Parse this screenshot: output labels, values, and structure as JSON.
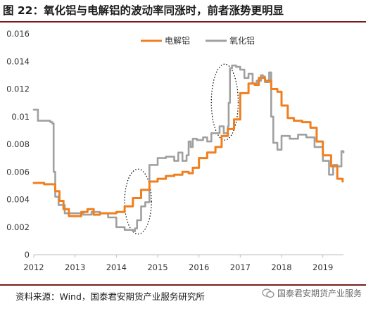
{
  "figure": {
    "title": "图 22：氧化铝与电解铝的波动率同涨时，前者涨势更明显",
    "source": "资料来源：Wind，国泰君安期货产业服务研究所",
    "watermark": "国泰君安期货产业服务"
  },
  "chart_data": {
    "type": "line",
    "xlabel": "",
    "ylabel": "",
    "xlim": [
      2012,
      2019.5
    ],
    "ylim": [
      0,
      0.016
    ],
    "xticks": [
      "2012",
      "2013",
      "2014",
      "2015",
      "2016",
      "2017",
      "2018",
      "2019"
    ],
    "yticks": [
      "0",
      "0.002",
      "0.004",
      "0.006",
      "0.008",
      "0.01",
      "0.012",
      "0.014",
      "0.016"
    ],
    "legend_position": "top-center",
    "grid": false,
    "series": [
      {
        "name": "电解铝",
        "color": "#f07f1f",
        "x": [
          2012.0,
          2012.25,
          2012.45,
          2012.52,
          2012.62,
          2012.72,
          2012.85,
          2013.0,
          2013.15,
          2013.3,
          2013.45,
          2013.6,
          2013.8,
          2014.0,
          2014.2,
          2014.4,
          2014.6,
          2014.8,
          2015.0,
          2015.2,
          2015.4,
          2015.6,
          2015.75,
          2015.85,
          2016.0,
          2016.2,
          2016.4,
          2016.55,
          2016.7,
          2016.85,
          2017.0,
          2017.2,
          2017.35,
          2017.45,
          2017.6,
          2017.75,
          2017.9,
          2018.0,
          2018.15,
          2018.3,
          2018.5,
          2018.7,
          2018.85,
          2019.0,
          2019.2,
          2019.35,
          2019.48
        ],
        "y": [
          0.0052,
          0.0051,
          0.0051,
          0.0046,
          0.0039,
          0.0033,
          0.0028,
          0.0028,
          0.0031,
          0.0033,
          0.0029,
          0.003,
          0.003,
          0.0031,
          0.0035,
          0.0041,
          0.0047,
          0.0053,
          0.0055,
          0.0057,
          0.0058,
          0.006,
          0.0059,
          0.0063,
          0.007,
          0.0074,
          0.0078,
          0.0086,
          0.0091,
          0.0098,
          0.0117,
          0.0124,
          0.0123,
          0.0128,
          0.0126,
          0.012,
          0.0118,
          0.0108,
          0.0099,
          0.0097,
          0.0096,
          0.0092,
          0.0082,
          0.0072,
          0.0064,
          0.0055,
          0.0053
        ]
      },
      {
        "name": "氧化铝",
        "color": "#a0a0a0",
        "x": [
          2012.0,
          2012.05,
          2012.1,
          2012.4,
          2012.45,
          2012.48,
          2012.52,
          2012.6,
          2012.75,
          2012.85,
          2013.0,
          2013.2,
          2013.4,
          2013.6,
          2013.8,
          2014.0,
          2014.2,
          2014.4,
          2014.45,
          2014.5,
          2014.6,
          2014.7,
          2014.8,
          2015.0,
          2015.2,
          2015.4,
          2015.5,
          2015.6,
          2015.7,
          2015.75,
          2015.8,
          2015.85,
          2015.95,
          2016.1,
          2016.2,
          2016.3,
          2016.5,
          2016.6,
          2016.7,
          2016.72,
          2016.75,
          2016.8,
          2016.9,
          2017.0,
          2017.1,
          2017.2,
          2017.3,
          2017.4,
          2017.5,
          2017.55,
          2017.6,
          2017.7,
          2017.75,
          2017.8,
          2017.9,
          2018.0,
          2018.2,
          2018.4,
          2018.6,
          2018.8,
          2019.0,
          2019.15,
          2019.25,
          2019.35,
          2019.45,
          2019.5
        ],
        "y": [
          0.0105,
          0.0105,
          0.0097,
          0.0096,
          0.0095,
          0.006,
          0.0042,
          0.0036,
          0.003,
          0.003,
          0.003,
          0.0029,
          0.0031,
          0.003,
          0.0027,
          0.002,
          0.0018,
          0.0017,
          0.0019,
          0.0025,
          0.0035,
          0.0038,
          0.0065,
          0.007,
          0.0071,
          0.0068,
          0.0074,
          0.0068,
          0.0072,
          0.0082,
          0.0078,
          0.0084,
          0.0083,
          0.0085,
          0.0082,
          0.0088,
          0.0093,
          0.0088,
          0.0093,
          0.011,
          0.0135,
          0.0137,
          0.0136,
          0.0134,
          0.0128,
          0.0131,
          0.0124,
          0.0126,
          0.013,
          0.0129,
          0.0125,
          0.0132,
          0.01,
          0.0081,
          0.0076,
          0.0086,
          0.0084,
          0.0087,
          0.0085,
          0.0078,
          0.0068,
          0.0058,
          0.0065,
          0.0064,
          0.0075,
          0.0074
        ]
      }
    ],
    "annotations": [
      {
        "shape": "dotted-ellipse",
        "x_range": [
          2014.2,
          2014.85
        ],
        "y_range": [
          0.0015,
          0.0062
        ]
      },
      {
        "shape": "dotted-ellipse",
        "x_range": [
          2016.3,
          2016.95
        ],
        "y_range": [
          0.0083,
          0.0138
        ]
      }
    ]
  }
}
